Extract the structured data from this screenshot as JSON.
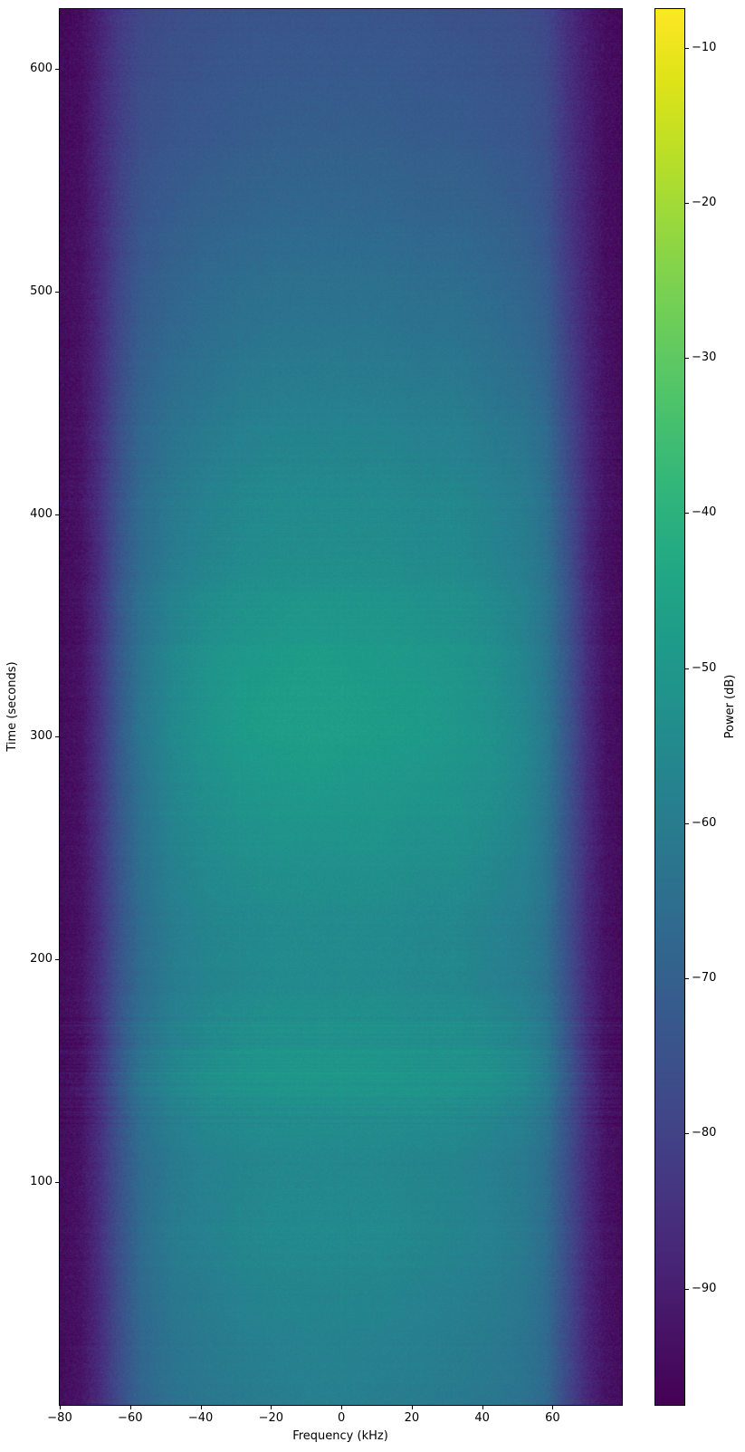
{
  "chart_data": {
    "type": "heatmap",
    "title": "",
    "xlabel": "Frequency (kHz)",
    "ylabel": "Time (seconds)",
    "x_range": [
      -80,
      79.7
    ],
    "y_range": [
      0,
      626.8
    ],
    "x_ticks": [
      -80,
      -60,
      -40,
      -20,
      0,
      20,
      40,
      60
    ],
    "y_ticks": [
      100,
      200,
      300,
      400,
      500,
      600
    ],
    "grid_lines": "off",
    "colorbar": {
      "label": "Power (dB)",
      "colormap": "viridis",
      "vmin": -97.5,
      "vmax": -7.5,
      "ticks": [
        -10,
        -20,
        -30,
        -40,
        -50,
        -60,
        -70,
        -80,
        -90
      ],
      "position": "right"
    },
    "grid": {
      "comment": "Coarse power grid read off the spectrogram. Rows = times_s (ascending, bottom to top of plot), cols = freqs_khz. Values in dB.",
      "freqs_khz": [
        -80,
        -74,
        -69,
        -63,
        -57,
        -48,
        -38,
        -28,
        -18,
        -8,
        2,
        12,
        22,
        32,
        42,
        52,
        58,
        64,
        70,
        75,
        80
      ],
      "times_s": [
        0,
        45,
        80,
        110,
        135,
        150,
        165,
        190,
        225,
        260,
        285,
        310,
        340,
        375,
        420,
        470,
        520,
        575,
        627
      ],
      "power_db": [
        [
          -95,
          -93,
          -87,
          -77,
          -69,
          -64,
          -62,
          -61,
          -60,
          -59,
          -59,
          -60,
          -60,
          -61,
          -62,
          -64,
          -67,
          -78,
          -88,
          -93,
          -95
        ],
        [
          -95,
          -93,
          -87,
          -76,
          -67,
          -62,
          -60,
          -58,
          -57,
          -57,
          -57,
          -57,
          -58,
          -59,
          -60,
          -62,
          -66,
          -77,
          -88,
          -93,
          -95
        ],
        [
          -95,
          -93,
          -86,
          -75,
          -66,
          -60,
          -58,
          -56,
          -55,
          -55,
          -55,
          -55,
          -56,
          -57,
          -58,
          -61,
          -65,
          -76,
          -87,
          -93,
          -95
        ],
        [
          -95,
          -93,
          -86,
          -75,
          -66,
          -61,
          -58,
          -57,
          -56,
          -56,
          -56,
          -56,
          -57,
          -57,
          -59,
          -61,
          -65,
          -76,
          -87,
          -93,
          -95
        ],
        [
          -95,
          -93,
          -86,
          -74,
          -64,
          -58,
          -55,
          -54,
          -53,
          -53,
          -53,
          -53,
          -53,
          -54,
          -55,
          -58,
          -62,
          -74,
          -86,
          -93,
          -95
        ],
        [
          -95,
          -93,
          -85,
          -72,
          -62,
          -56,
          -53,
          -51,
          -50,
          -50,
          -50,
          -50,
          -51,
          -51,
          -52,
          -55,
          -60,
          -72,
          -85,
          -93,
          -95
        ],
        [
          -95,
          -93,
          -86,
          -73,
          -64,
          -58,
          -55,
          -53,
          -52,
          -52,
          -52,
          -52,
          -53,
          -53,
          -54,
          -57,
          -61,
          -73,
          -86,
          -93,
          -95
        ],
        [
          -95,
          -93,
          -86,
          -74,
          -66,
          -60,
          -57,
          -56,
          -55,
          -55,
          -55,
          -55,
          -56,
          -56,
          -58,
          -60,
          -64,
          -75,
          -87,
          -93,
          -95
        ],
        [
          -95,
          -93,
          -86,
          -74,
          -65,
          -59,
          -56,
          -55,
          -54,
          -54,
          -54,
          -54,
          -55,
          -55,
          -57,
          -59,
          -63,
          -75,
          -87,
          -93,
          -95
        ],
        [
          -95,
          -93,
          -85,
          -73,
          -64,
          -57,
          -54,
          -52,
          -51,
          -51,
          -51,
          -51,
          -52,
          -52,
          -54,
          -57,
          -62,
          -74,
          -86,
          -93,
          -95
        ],
        [
          -95,
          -93,
          -85,
          -72,
          -63,
          -56,
          -52,
          -50,
          -49,
          -48,
          -49,
          -49,
          -50,
          -51,
          -52,
          -56,
          -61,
          -73,
          -86,
          -93,
          -95
        ],
        [
          -95,
          -93,
          -85,
          -72,
          -62,
          -55,
          -51,
          -48,
          -47,
          -47,
          -47,
          -48,
          -48,
          -50,
          -52,
          -56,
          -61,
          -73,
          -86,
          -93,
          -95
        ],
        [
          -95,
          -93,
          -85,
          -72,
          -63,
          -56,
          -52,
          -50,
          -49,
          -48,
          -49,
          -49,
          -50,
          -51,
          -53,
          -57,
          -62,
          -73,
          -86,
          -93,
          -95
        ],
        [
          -95,
          -93,
          -86,
          -73,
          -65,
          -59,
          -56,
          -54,
          -53,
          -53,
          -53,
          -53,
          -54,
          -54,
          -56,
          -59,
          -63,
          -74,
          -87,
          -93,
          -95
        ],
        [
          -95,
          -93,
          -86,
          -75,
          -67,
          -62,
          -59,
          -57,
          -56,
          -56,
          -56,
          -56,
          -57,
          -57,
          -59,
          -61,
          -65,
          -76,
          -87,
          -93,
          -95
        ],
        [
          -95,
          -93,
          -87,
          -77,
          -70,
          -66,
          -64,
          -62,
          -61,
          -61,
          -61,
          -61,
          -62,
          -62,
          -64,
          -66,
          -69,
          -79,
          -88,
          -93,
          -95
        ],
        [
          -95,
          -93,
          -88,
          -79,
          -73,
          -70,
          -68,
          -67,
          -66,
          -66,
          -66,
          -66,
          -67,
          -67,
          -68,
          -70,
          -73,
          -82,
          -89,
          -94,
          -95
        ],
        [
          -95,
          -94,
          -88,
          -81,
          -76,
          -74,
          -73,
          -72,
          -71,
          -71,
          -71,
          -71,
          -72,
          -72,
          -73,
          -74,
          -76,
          -84,
          -90,
          -94,
          -95
        ],
        [
          -96,
          -94,
          -89,
          -82,
          -78,
          -76,
          -75,
          -74,
          -74,
          -74,
          -74,
          -74,
          -74,
          -75,
          -75,
          -76,
          -78,
          -85,
          -91,
          -94,
          -96
        ]
      ]
    },
    "features": {
      "bright_band_time_s": [
        128,
        172
      ],
      "bright_blob": {
        "time_s": [
          260,
          345
        ],
        "freq_khz": [
          -50,
          30
        ],
        "peak_db": -47
      },
      "edge_rolloff_khz": 63,
      "stripe_texture": "fine horizontal scan-line striping, strongest near t=130-170 s"
    }
  },
  "layout_text": {
    "minus_sign": "−"
  }
}
